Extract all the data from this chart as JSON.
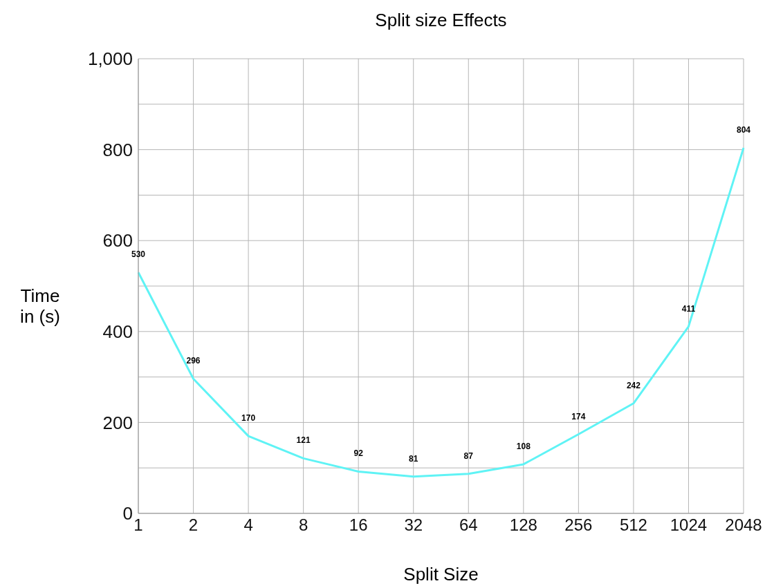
{
  "chart_data": {
    "type": "line",
    "title": "Split size Effects",
    "xlabel": "Split Size",
    "ylabel": "Time\nin (s)",
    "categories": [
      "1",
      "2",
      "4",
      "8",
      "16",
      "32",
      "64",
      "128",
      "256",
      "512",
      "1024",
      "2048"
    ],
    "series": [
      {
        "color": "#5ff3f5",
        "values": [
          530,
          296,
          170,
          121,
          92,
          81,
          87,
          108,
          174,
          242,
          411,
          804
        ]
      }
    ],
    "ylim": [
      0,
      1000
    ],
    "yticks": [
      0,
      {
        "value": 100,
        "label": null
      },
      200,
      {
        "value": 300,
        "label": null
      },
      400,
      {
        "value": 500,
        "label": null
      },
      600,
      {
        "value": 700,
        "label": null
      },
      800,
      {
        "value": 900,
        "label": null
      },
      {
        "value": 1000,
        "label": "1,000"
      }
    ],
    "grid": true,
    "data_labels": true,
    "marker": "none",
    "line_style": "solid"
  }
}
